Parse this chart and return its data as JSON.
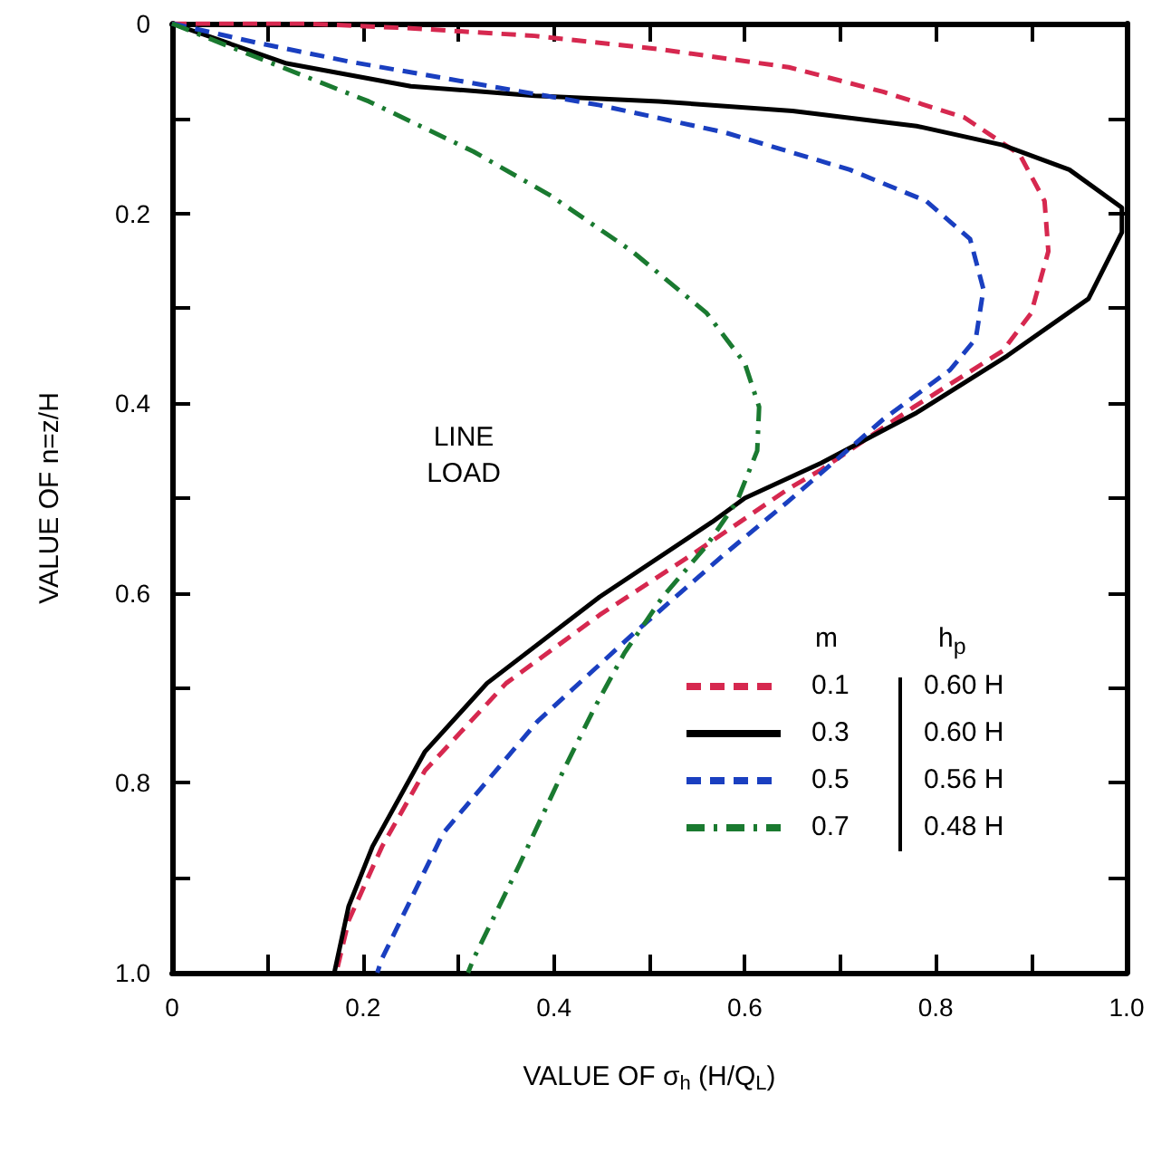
{
  "chart_data": {
    "type": "line",
    "xlabel": "VALUE OF σ$_{h}$ (H/Q$_{L}$)",
    "ylabel": "VALUE OF n=z/H",
    "xlim": [
      0,
      1
    ],
    "ylim": [
      1,
      0
    ],
    "xticks": [
      0,
      {
        "value": 0.1,
        "label": null
      },
      0.2,
      {
        "value": 0.3,
        "label": null
      },
      0.4,
      {
        "value": 0.5,
        "label": null
      },
      0.6,
      {
        "value": 0.7,
        "label": null
      },
      0.8,
      {
        "value": 0.9,
        "label": null
      },
      {
        "value": 1,
        "label": "1.0"
      }
    ],
    "yticks": [
      0,
      {
        "value": 0.1,
        "label": null
      },
      0.2,
      {
        "value": 0.3,
        "label": null
      },
      0.4,
      {
        "value": 0.5,
        "label": null
      },
      0.6,
      {
        "value": 0.7,
        "label": null
      },
      0.8,
      {
        "value": 0.9,
        "label": null
      },
      {
        "value": 1,
        "label": "1.0"
      }
    ],
    "marker": "none",
    "legend": "bottom right",
    "legend_title": "m",
    "annotations": [
      "LINE LOAD",
      "h$_{p}$",
      "0.60 H",
      "0.60 H",
      "0.56 H",
      "0.48 H"
    ],
    "series": [
      {
        "name": "0.1",
        "color": "#d6284f",
        "line_style": "dashed",
        "x": [
          0,
          0.14,
          0.25,
          0.38,
          0.51,
          0.646,
          0.745,
          0.83,
          0.888,
          0.914,
          0.918,
          0.9,
          0.87,
          0.777,
          0.68,
          0.646,
          0.547,
          0.448,
          0.35,
          0.265,
          0.22,
          0.185,
          0.172
        ],
        "values": [
          0,
          0,
          0.005,
          0.013,
          0.027,
          0.046,
          0.072,
          0.099,
          0.138,
          0.187,
          0.24,
          0.305,
          0.345,
          0.404,
          0.47,
          0.49,
          0.558,
          0.623,
          0.695,
          0.787,
          0.867,
          0.945,
          1.0
        ]
      },
      {
        "name": "0.3",
        "color": "#000000",
        "line_style": "solid",
        "x": [
          0,
          0.12,
          0.25,
          0.38,
          0.51,
          0.65,
          0.78,
          0.87,
          0.94,
          0.995,
          0.995,
          0.96,
          0.875,
          0.78,
          0.68,
          0.6,
          0.566,
          0.448,
          0.33,
          0.265,
          0.21,
          0.185,
          0.17
        ],
        "values": [
          0,
          0.042,
          0.066,
          0.076,
          0.082,
          0.092,
          0.108,
          0.128,
          0.154,
          0.194,
          0.22,
          0.29,
          0.35,
          0.41,
          0.463,
          0.5,
          0.525,
          0.604,
          0.695,
          0.767,
          0.867,
          0.93,
          1.0
        ]
      },
      {
        "name": "0.5",
        "color": "#1a3fc0",
        "line_style": "dashed",
        "x": [
          0,
          0.088,
          0.185,
          0.316,
          0.448,
          0.58,
          0.71,
          0.79,
          0.836,
          0.85,
          0.842,
          0.815,
          0.745,
          0.646,
          0.58,
          0.482,
          0.383,
          0.284,
          0.22,
          0.215
        ],
        "values": [
          0,
          0.02,
          0.04,
          0.063,
          0.086,
          0.115,
          0.154,
          0.187,
          0.227,
          0.28,
          0.332,
          0.365,
          0.417,
          0.503,
          0.558,
          0.644,
          0.735,
          0.853,
          0.985,
          1.0
        ]
      },
      {
        "name": "0.7",
        "color": "#1a7a30",
        "line_style": "dashdot",
        "x": [
          0,
          0.067,
          0.206,
          0.316,
          0.396,
          0.482,
          0.56,
          0.6,
          0.615,
          0.613,
          0.592,
          0.56,
          0.514,
          0.474,
          0.442,
          0.41,
          0.364,
          0.316,
          0.31
        ],
        "values": [
          0,
          0.027,
          0.082,
          0.135,
          0.181,
          0.24,
          0.305,
          0.358,
          0.404,
          0.45,
          0.503,
          0.55,
          0.604,
          0.663,
          0.722,
          0.787,
          0.886,
          0.985,
          1.0
        ]
      }
    ]
  }
}
